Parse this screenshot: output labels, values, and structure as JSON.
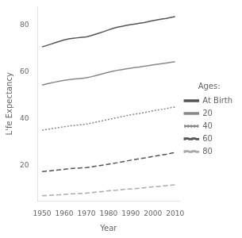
{
  "chart_data": {
    "type": "line",
    "x_label": "Year",
    "y_label": "L'fe Expectancy",
    "x": [
      1950,
      1952,
      1954,
      1956,
      1958,
      1960,
      1962,
      1964,
      1966,
      1968,
      1970,
      1972,
      1974,
      1976,
      1978,
      1980,
      1982,
      1984,
      1986,
      1988,
      1990,
      1992,
      1994,
      1996,
      1998,
      2000,
      2002,
      2004,
      2006,
      2008,
      2010
    ],
    "series": [
      {
        "name": "At Birth",
        "color": "#555555",
        "line_style": "solid",
        "values": [
          70.8,
          71.4,
          72.0,
          72.6,
          73.2,
          73.8,
          74.2,
          74.5,
          74.7,
          74.9,
          75.1,
          75.6,
          76.2,
          76.8,
          77.4,
          78.1,
          78.7,
          79.2,
          79.6,
          80.0,
          80.3,
          80.6,
          80.9,
          81.2,
          81.6,
          82.0,
          82.4,
          82.7,
          83.0,
          83.4,
          83.7
        ]
      },
      {
        "name": "20",
        "color": "#888888",
        "line_style": "solid",
        "values": [
          54.5,
          55.0,
          55.4,
          55.8,
          56.2,
          56.5,
          56.8,
          57.0,
          57.2,
          57.4,
          57.6,
          58.0,
          58.5,
          59.0,
          59.5,
          60.0,
          60.4,
          60.8,
          61.1,
          61.4,
          61.7,
          62.0,
          62.2,
          62.5,
          62.8,
          63.1,
          63.4,
          63.6,
          63.9,
          64.2,
          64.5
        ]
      },
      {
        "name": "40",
        "color": "#888888",
        "line_style": "dotted",
        "values": [
          35.2,
          35.5,
          35.8,
          36.1,
          36.4,
          36.7,
          37.0,
          37.2,
          37.4,
          37.6,
          37.8,
          38.2,
          38.6,
          39.0,
          39.4,
          39.8,
          40.2,
          40.6,
          41.0,
          41.4,
          41.8,
          42.1,
          42.4,
          42.7,
          43.1,
          43.5,
          43.8,
          44.1,
          44.4,
          44.8,
          45.1
        ]
      },
      {
        "name": "60",
        "color": "#555555",
        "line_style": "dashed",
        "values": [
          17.5,
          17.7,
          17.9,
          18.1,
          18.3,
          18.5,
          18.7,
          18.9,
          19.0,
          19.1,
          19.2,
          19.5,
          19.8,
          20.1,
          20.4,
          20.7,
          21.0,
          21.3,
          21.7,
          22.0,
          22.4,
          22.7,
          23.0,
          23.3,
          23.6,
          24.0,
          24.3,
          24.6,
          24.9,
          25.3,
          25.7
        ]
      },
      {
        "name": "80",
        "color": "#aaaaaa",
        "line_style": "dashed",
        "values": [
          7.2,
          7.3,
          7.4,
          7.5,
          7.6,
          7.8,
          7.9,
          8.0,
          8.1,
          8.2,
          8.3,
          8.5,
          8.7,
          8.9,
          9.1,
          9.3,
          9.5,
          9.6,
          9.8,
          10.0,
          10.1,
          10.2,
          10.4,
          10.6,
          10.8,
          11.0,
          11.1,
          11.3,
          11.5,
          11.7,
          11.9
        ]
      }
    ],
    "xlim": [
      1948,
      2012
    ],
    "xticks": [
      1950,
      1960,
      1970,
      1980,
      1990,
      2000,
      2010
    ],
    "ylim": [
      5,
      88
    ],
    "yticks": [
      20,
      40,
      60,
      80
    ],
    "legend": "right",
    "legend_title": "Ages:",
    "grid": false
  }
}
